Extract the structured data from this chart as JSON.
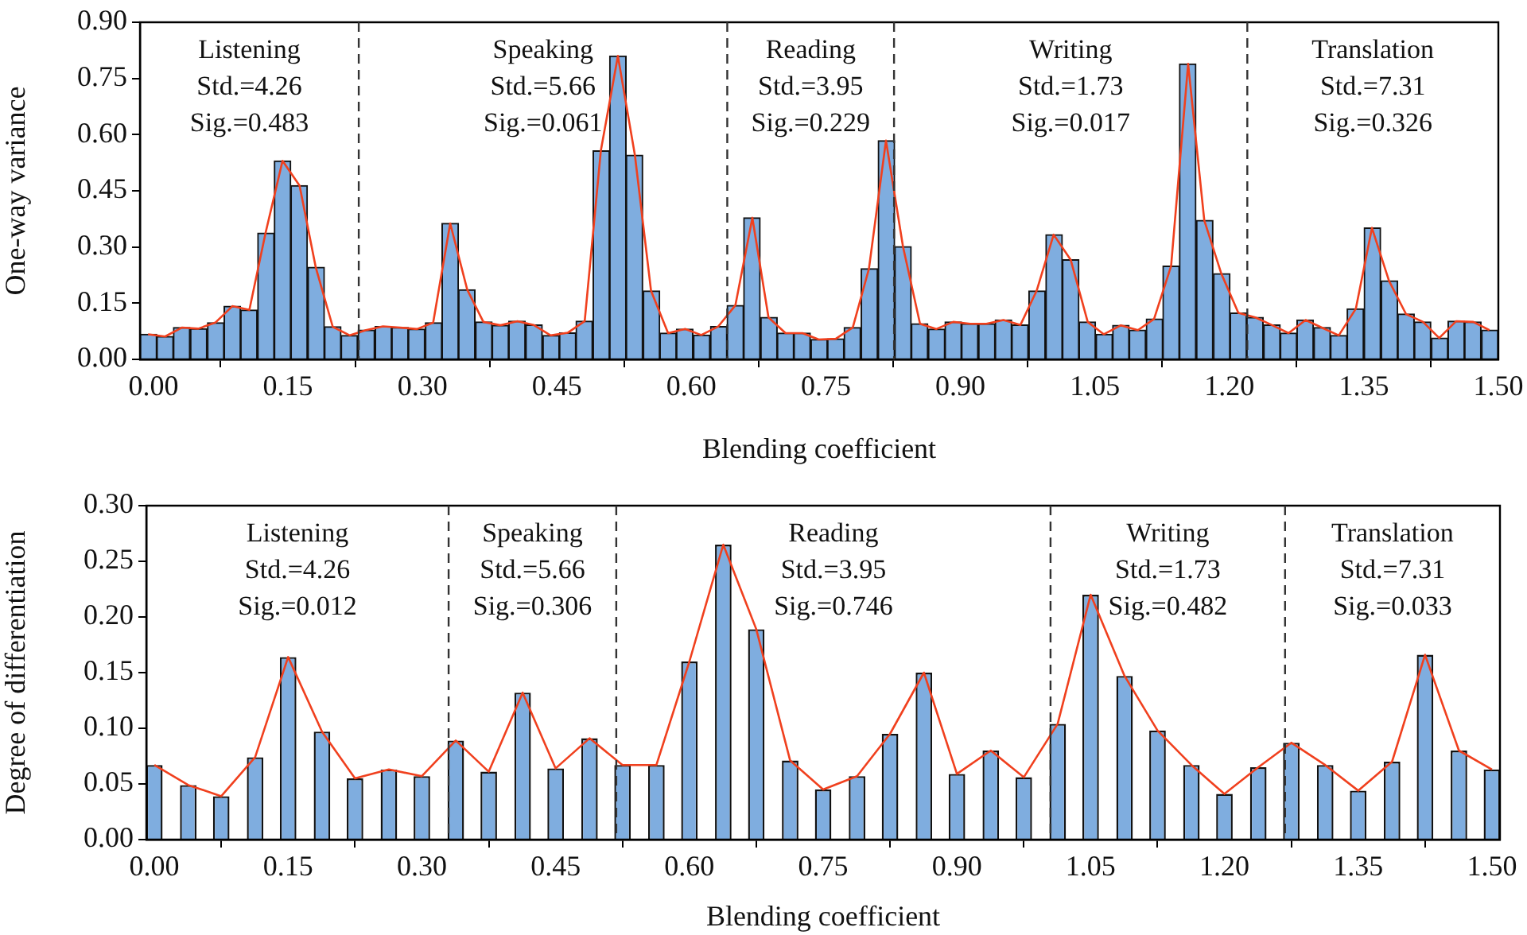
{
  "chart_data": [
    {
      "type": "histogram",
      "xlabel": "Blending coefficient",
      "ylabel": "One-way variance",
      "xlim": [
        -0.015,
        1.5
      ],
      "ylim": [
        0,
        0.9
      ],
      "xticks": [
        {
          "value": 0,
          "label": "0.00"
        },
        {
          "value": 0.15,
          "label": "0.15"
        },
        {
          "value": 0.3,
          "label": "0.30"
        },
        {
          "value": 0.45,
          "label": "0.45"
        },
        {
          "value": 0.6,
          "label": "0.60"
        },
        {
          "value": 0.75,
          "label": "0.75"
        },
        {
          "value": 0.9,
          "label": "0.90"
        },
        {
          "value": 1.05,
          "label": "1.05"
        },
        {
          "value": 1.2,
          "label": "1.20"
        },
        {
          "value": 1.35,
          "label": "1.35"
        },
        {
          "value": 1.5,
          "label": "1.50"
        }
      ],
      "yticks": [
        {
          "value": 0,
          "label": "0.00"
        },
        {
          "value": 0.15,
          "label": "0.15"
        },
        {
          "value": 0.3,
          "label": "0.30"
        },
        {
          "value": 0.45,
          "label": "0.45"
        },
        {
          "value": 0.6,
          "label": "0.60"
        },
        {
          "value": 0.75,
          "label": "0.75"
        },
        {
          "value": 0.9,
          "label": "0.90"
        }
      ],
      "series": [
        {
          "type": "histogram",
          "color": "#7faddf",
          "bins": [
            -0.015,
            0.004,
            0.022,
            0.041,
            0.06,
            0.079,
            0.097,
            0.116,
            0.135,
            0.153,
            0.172,
            0.191,
            0.209,
            0.228,
            0.247,
            0.266,
            0.284,
            0.303,
            0.322,
            0.34,
            0.359,
            0.378,
            0.396,
            0.415,
            0.434,
            0.453,
            0.471,
            0.49,
            0.509,
            0.527,
            0.546,
            0.565,
            0.583,
            0.602,
            0.621,
            0.64,
            0.658,
            0.677,
            0.696,
            0.714,
            0.733,
            0.752,
            0.77,
            0.789,
            0.808,
            0.827,
            0.845,
            0.864,
            0.883,
            0.901,
            0.92,
            0.939,
            0.957,
            0.976,
            0.995,
            1.014,
            1.032,
            1.051,
            1.07,
            1.088,
            1.107,
            1.126,
            1.144,
            1.163,
            1.182,
            1.201,
            1.219,
            1.238,
            1.257,
            1.275,
            1.294,
            1.313,
            1.331,
            1.35,
            1.369,
            1.388,
            1.406,
            1.425,
            1.444,
            1.462,
            1.481,
            1.5
          ],
          "values": [
            0.067,
            0.061,
            0.085,
            0.082,
            0.098,
            0.142,
            0.132,
            0.337,
            0.53,
            0.464,
            0.246,
            0.087,
            0.064,
            0.078,
            0.088,
            0.085,
            0.081,
            0.098,
            0.363,
            0.186,
            0.1,
            0.091,
            0.102,
            0.092,
            0.064,
            0.071,
            0.102,
            0.557,
            0.81,
            0.545,
            0.183,
            0.07,
            0.081,
            0.065,
            0.088,
            0.144,
            0.378,
            0.112,
            0.07,
            0.07,
            0.053,
            0.055,
            0.085,
            0.242,
            0.584,
            0.301,
            0.095,
            0.081,
            0.1,
            0.095,
            0.095,
            0.105,
            0.092,
            0.183,
            0.333,
            0.266,
            0.1,
            0.067,
            0.091,
            0.078,
            0.108,
            0.249,
            0.789,
            0.371,
            0.229,
            0.124,
            0.112,
            0.092,
            0.07,
            0.105,
            0.085,
            0.064,
            0.135,
            0.351,
            0.21,
            0.121,
            0.1,
            0.057,
            0.102,
            0.1,
            0.078
          ]
        },
        {
          "type": "line",
          "color": "#f0401e",
          "x": [
            -0.006,
            0.013,
            0.032,
            0.05,
            0.069,
            0.088,
            0.107,
            0.125,
            0.144,
            0.163,
            0.181,
            0.2,
            0.219,
            0.237,
            0.256,
            0.275,
            0.294,
            0.312,
            0.331,
            0.35,
            0.368,
            0.387,
            0.406,
            0.424,
            0.443,
            0.462,
            0.481,
            0.499,
            0.518,
            0.537,
            0.555,
            0.574,
            0.593,
            0.611,
            0.63,
            0.649,
            0.668,
            0.686,
            0.705,
            0.724,
            0.742,
            0.761,
            0.78,
            0.798,
            0.817,
            0.836,
            0.855,
            0.873,
            0.892,
            0.911,
            0.929,
            0.948,
            0.967,
            0.985,
            1.004,
            1.023,
            1.042,
            1.06,
            1.079,
            1.098,
            1.116,
            1.135,
            1.154,
            1.172,
            1.191,
            1.21,
            1.229,
            1.247,
            1.266,
            1.285,
            1.303,
            1.322,
            1.341,
            1.359,
            1.378,
            1.397,
            1.416,
            1.434,
            1.453,
            1.472,
            1.49
          ],
          "values": [
            0.067,
            0.061,
            0.085,
            0.082,
            0.098,
            0.142,
            0.132,
            0.337,
            0.53,
            0.464,
            0.246,
            0.087,
            0.064,
            0.078,
            0.088,
            0.085,
            0.081,
            0.098,
            0.363,
            0.186,
            0.1,
            0.091,
            0.102,
            0.092,
            0.064,
            0.071,
            0.102,
            0.557,
            0.81,
            0.545,
            0.183,
            0.07,
            0.081,
            0.065,
            0.088,
            0.144,
            0.378,
            0.112,
            0.07,
            0.07,
            0.053,
            0.055,
            0.085,
            0.242,
            0.584,
            0.301,
            0.095,
            0.081,
            0.1,
            0.095,
            0.095,
            0.105,
            0.092,
            0.183,
            0.333,
            0.266,
            0.1,
            0.067,
            0.091,
            0.078,
            0.108,
            0.249,
            0.789,
            0.371,
            0.229,
            0.124,
            0.112,
            0.092,
            0.07,
            0.105,
            0.085,
            0.064,
            0.135,
            0.351,
            0.21,
            0.121,
            0.1,
            0.057,
            0.102,
            0.1,
            0.078
          ]
        }
      ],
      "ref_lines": [
        {
          "axis": "x",
          "value": 0.229,
          "line_style": "dashed"
        },
        {
          "axis": "x",
          "value": 0.64,
          "line_style": "dashed"
        },
        {
          "axis": "x",
          "value": 0.826,
          "line_style": "dashed"
        },
        {
          "axis": "x",
          "value": 1.22,
          "line_style": "dashed"
        }
      ],
      "annotations": [
        "Listening\nStd.=4.26\nSig.=0.483",
        "Speaking\nStd.=5.66\nSig.=0.061",
        "Reading\nStd.=3.95\nSig.=0.229",
        "Writing\nStd.=1.73\nSig.=0.017",
        "Translation\nStd.=7.31\nSig.=0.326"
      ]
    },
    {
      "type": "bar",
      "xlabel": "Blending coefficient",
      "ylabel": "Degree of differentiation",
      "xlim": [
        -0.009,
        1.509
      ],
      "ylim": [
        0,
        0.3
      ],
      "xticks": [
        {
          "value": 0,
          "label": "0.00"
        },
        {
          "value": 0.15,
          "label": "0.15"
        },
        {
          "value": 0.3,
          "label": "0.30"
        },
        {
          "value": 0.45,
          "label": "0.45"
        },
        {
          "value": 0.6,
          "label": "0.60"
        },
        {
          "value": 0.75,
          "label": "0.75"
        },
        {
          "value": 0.9,
          "label": "0.90"
        },
        {
          "value": 1.05,
          "label": "1.05"
        },
        {
          "value": 1.2,
          "label": "1.20"
        },
        {
          "value": 1.35,
          "label": "1.35"
        },
        {
          "value": 1.5,
          "label": "1.50"
        }
      ],
      "yticks": [
        {
          "value": 0,
          "label": "0.00"
        },
        {
          "value": 0.05,
          "label": "0.05"
        },
        {
          "value": 0.1,
          "label": "0.10"
        },
        {
          "value": 0.15,
          "label": "0.15"
        },
        {
          "value": 0.2,
          "label": "0.20"
        },
        {
          "value": 0.25,
          "label": "0.25"
        },
        {
          "value": 0.3,
          "label": "0.30"
        }
      ],
      "series": [
        {
          "type": "bar",
          "color": "#7faddf",
          "x": [
            0,
            0.038,
            0.075,
            0.113,
            0.15,
            0.188,
            0.225,
            0.263,
            0.3,
            0.338,
            0.375,
            0.413,
            0.45,
            0.488,
            0.525,
            0.563,
            0.6,
            0.638,
            0.675,
            0.713,
            0.75,
            0.788,
            0.825,
            0.863,
            0.9,
            0.938,
            0.975,
            1.013,
            1.05,
            1.088,
            1.125,
            1.163,
            1.2,
            1.238,
            1.275,
            1.313,
            1.35,
            1.388,
            1.425,
            1.463,
            1.5
          ],
          "values": [
            0.067,
            0.049,
            0.039,
            0.074,
            0.164,
            0.097,
            0.055,
            0.063,
            0.057,
            0.089,
            0.061,
            0.132,
            0.064,
            0.091,
            0.067,
            0.067,
            0.16,
            0.265,
            0.189,
            0.071,
            0.045,
            0.057,
            0.095,
            0.15,
            0.059,
            0.08,
            0.056,
            0.104,
            0.22,
            0.147,
            0.098,
            0.067,
            0.041,
            0.065,
            0.087,
            0.067,
            0.044,
            0.07,
            0.166,
            0.08,
            0.063
          ]
        },
        {
          "type": "line",
          "color": "#f0401e",
          "x": [
            0,
            0.038,
            0.075,
            0.113,
            0.15,
            0.188,
            0.225,
            0.263,
            0.3,
            0.338,
            0.375,
            0.413,
            0.45,
            0.488,
            0.525,
            0.563,
            0.6,
            0.638,
            0.675,
            0.713,
            0.75,
            0.788,
            0.825,
            0.863,
            0.9,
            0.938,
            0.975,
            1.013,
            1.05,
            1.088,
            1.125,
            1.163,
            1.2,
            1.238,
            1.275,
            1.313,
            1.35,
            1.388,
            1.425,
            1.463,
            1.5
          ],
          "values": [
            0.067,
            0.049,
            0.039,
            0.074,
            0.164,
            0.097,
            0.055,
            0.063,
            0.057,
            0.089,
            0.061,
            0.132,
            0.064,
            0.091,
            0.067,
            0.067,
            0.16,
            0.265,
            0.189,
            0.071,
            0.045,
            0.057,
            0.095,
            0.15,
            0.059,
            0.08,
            0.056,
            0.104,
            0.22,
            0.147,
            0.098,
            0.067,
            0.041,
            0.065,
            0.087,
            0.067,
            0.044,
            0.07,
            0.166,
            0.08,
            0.063
          ]
        }
      ],
      "ref_lines": [
        {
          "axis": "x",
          "value": 0.33,
          "line_style": "dashed"
        },
        {
          "axis": "x",
          "value": 0.518,
          "line_style": "dashed"
        },
        {
          "axis": "x",
          "value": 1.005,
          "line_style": "dashed"
        },
        {
          "axis": "x",
          "value": 1.268,
          "line_style": "dashed"
        }
      ],
      "annotations": [
        "Listening\nStd.=4.26\nSig.=0.012",
        "Speaking\nStd.=5.66\nSig.=0.306",
        "Reading\nStd.=3.95\nSig.=0.746",
        "Writing\nStd.=1.73\nSig.=0.482",
        "Translation\nStd.=7.31\nSig.=0.033"
      ]
    }
  ]
}
